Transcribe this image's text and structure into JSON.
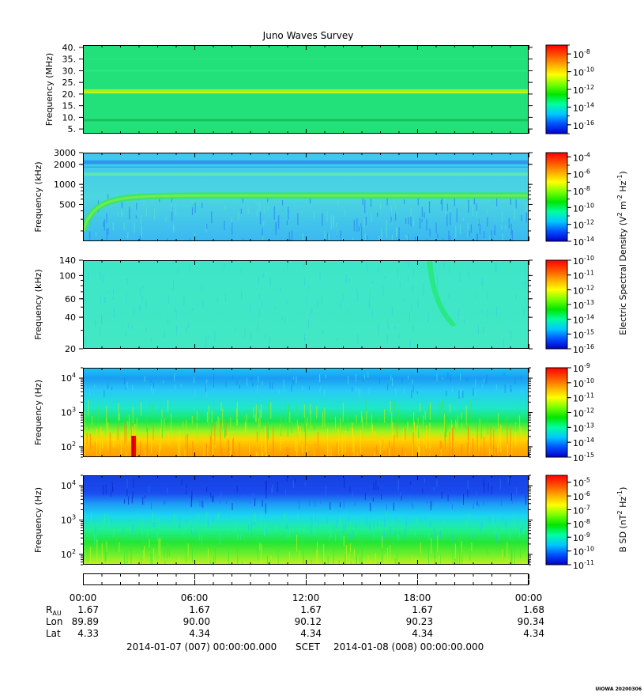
{
  "chart_data": {
    "type": "heatmap",
    "title": "Juno Waves Survey",
    "colormap": [
      "#0000c8",
      "#0050ff",
      "#00c8ff",
      "#00ffa0",
      "#00e600",
      "#78ff00",
      "#ffff00",
      "#ffaa00",
      "#ff5000",
      "#ff0000"
    ],
    "time_axis": {
      "tick_labels": [
        "00:00",
        "06:00",
        "12:00",
        "18:00",
        "00:00"
      ],
      "range_hours": [
        0,
        24
      ],
      "major_tick_hours": [
        0,
        6,
        12,
        18,
        24
      ],
      "minor_tick_step_hours": 1,
      "ephemeris": [
        {
          "label": "R",
          "subscript": "AU",
          "values": [
            "1.67",
            "1.67",
            "1.67",
            "1.67",
            "1.68"
          ]
        },
        {
          "label": "Lon",
          "subscript": "",
          "values": [
            "89.89",
            "90.00",
            "90.12",
            "90.23",
            "90.34"
          ]
        },
        {
          "label": "Lat",
          "subscript": "",
          "values": [
            "4.33",
            "4.34",
            "4.34",
            "4.34",
            "4.34"
          ]
        }
      ],
      "start_label": "2014-01-07 (007) 00:00:00.000",
      "scet_label": "SCET",
      "end_label": "2014-01-08 (008) 00:00:00.000"
    },
    "panels": [
      {
        "id": "mhz",
        "ylabel": "Frequency (MHz)",
        "yscale": "linear",
        "ylim": [
          3,
          41
        ],
        "yticks": [
          {
            "v": 5,
            "t": "5."
          },
          {
            "v": 10,
            "t": "10."
          },
          {
            "v": 15,
            "t": "15."
          },
          {
            "v": 20,
            "t": "20."
          },
          {
            "v": 25,
            "t": "25."
          },
          {
            "v": 30,
            "t": "30."
          },
          {
            "v": 35,
            "t": "35."
          },
          {
            "v": 40,
            "t": "40."
          }
        ],
        "colorbar": {
          "min_exp": -17,
          "max_exp": -7,
          "labels": [
            {
              "e": -8,
              "t": "-8"
            },
            {
              "e": -10,
              "t": "-10"
            },
            {
              "e": -12,
              "t": "-12"
            },
            {
              "e": -14,
              "t": "-14"
            },
            {
              "e": -16,
              "t": "-16"
            }
          ],
          "label": ""
        }
      },
      {
        "id": "khz_high",
        "ylabel": "Frequency (kHz)",
        "yscale": "log",
        "ylim": [
          140,
          3000
        ],
        "yticks": [
          {
            "v": 500,
            "t": "500"
          },
          {
            "v": 1000,
            "t": "1000"
          },
          {
            "v": 2000,
            "t": "2000"
          },
          {
            "v": 3000,
            "t": "3000"
          }
        ],
        "colorbar": {
          "min_exp": -14,
          "max_exp": -3.5,
          "labels": [
            {
              "e": -4,
              "t": "-4"
            },
            {
              "e": -6,
              "t": "-6"
            },
            {
              "e": -8,
              "t": "-8"
            },
            {
              "e": -10,
              "t": "-10"
            },
            {
              "e": -12,
              "t": "-12"
            },
            {
              "e": -14,
              "t": "-14"
            }
          ],
          "label": "Electric Spectral Density (V2 m-2 Hz-1)"
        }
      },
      {
        "id": "khz_low",
        "ylabel": "Frequency (kHz)",
        "yscale": "log",
        "ylim": [
          20,
          140
        ],
        "yticks": [
          {
            "v": 20,
            "t": "20"
          },
          {
            "v": 40,
            "t": "40"
          },
          {
            "v": 60,
            "t": "60"
          },
          {
            "v": 100,
            "t": "100"
          },
          {
            "v": 140,
            "t": "140"
          }
        ],
        "colorbar": {
          "min_exp": -16,
          "max_exp": -10,
          "labels": [
            {
              "e": -10,
              "t": "-10"
            },
            {
              "e": -11,
              "t": "-11"
            },
            {
              "e": -12,
              "t": "-12"
            },
            {
              "e": -13,
              "t": "-13"
            },
            {
              "e": -14,
              "t": "-14"
            },
            {
              "e": -15,
              "t": "-15"
            },
            {
              "e": -16,
              "t": "-16"
            }
          ],
          "label": ""
        }
      },
      {
        "id": "hz_e",
        "ylabel": "Frequency (Hz)",
        "yscale": "log",
        "ylim": [
          50,
          20000
        ],
        "yticks": [
          {
            "v": 100,
            "t": "2"
          },
          {
            "v": 1000,
            "t": "3"
          },
          {
            "v": 10000,
            "t": "4"
          }
        ],
        "colorbar": {
          "min_exp": -15,
          "max_exp": -9,
          "labels": [
            {
              "e": -9,
              "t": "-9"
            },
            {
              "e": -10,
              "t": "-10"
            },
            {
              "e": -11,
              "t": "-11"
            },
            {
              "e": -12,
              "t": "-12"
            },
            {
              "e": -13,
              "t": "-13"
            },
            {
              "e": -14,
              "t": "-14"
            },
            {
              "e": -15,
              "t": "-15"
            }
          ],
          "label": ""
        }
      },
      {
        "id": "hz_b",
        "ylabel": "Frequency (Hz)",
        "yscale": "log",
        "ylim": [
          50,
          20000
        ],
        "yticks": [
          {
            "v": 100,
            "t": "2"
          },
          {
            "v": 1000,
            "t": "3"
          },
          {
            "v": 10000,
            "t": "4"
          }
        ],
        "colorbar": {
          "min_exp": -11,
          "max_exp": -4.5,
          "labels": [
            {
              "e": -5,
              "t": "-5"
            },
            {
              "e": -6,
              "t": "-6"
            },
            {
              "e": -7,
              "t": "-7"
            },
            {
              "e": -8,
              "t": "-8"
            },
            {
              "e": -9,
              "t": "-9"
            },
            {
              "e": -10,
              "t": "-10"
            },
            {
              "e": -11,
              "t": "-11"
            }
          ],
          "label": "B SD (nT2 Hz-1)"
        }
      }
    ]
  },
  "footer_stamp": "UIOWA 20200306"
}
